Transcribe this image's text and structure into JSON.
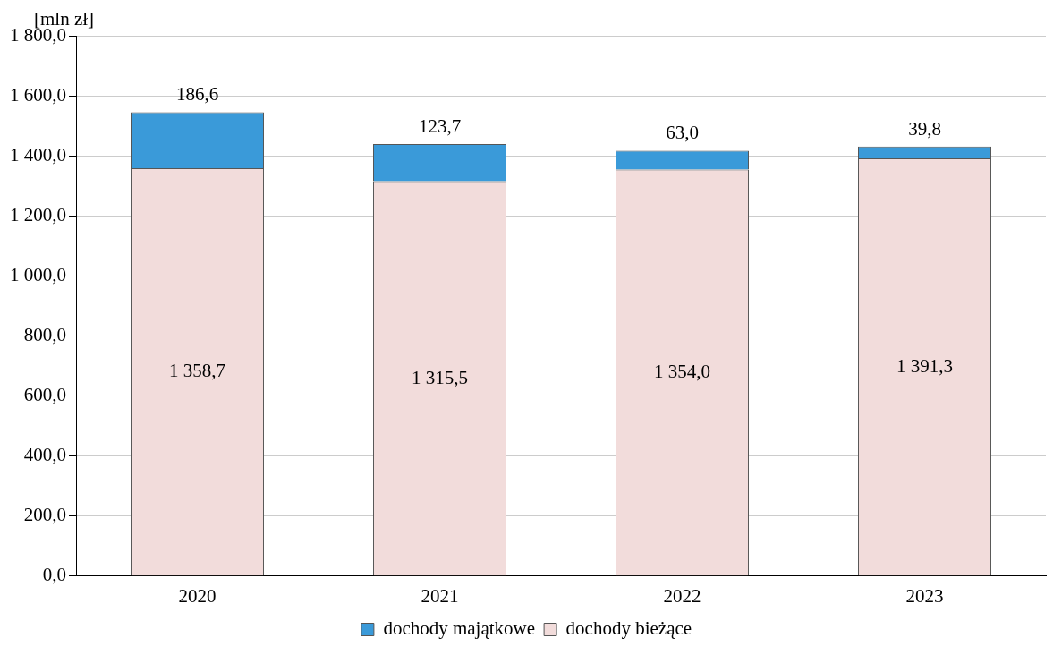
{
  "chart_data": {
    "type": "bar",
    "stacked": true,
    "ylabel": "[mln zł]",
    "categories": [
      "2020",
      "2021",
      "2022",
      "2023"
    ],
    "series": [
      {
        "name": "dochody bieżące",
        "color": "#f2dcdb",
        "values": [
          1358.7,
          1315.5,
          1354.0,
          1391.3
        ],
        "value_labels": [
          "1 358,7",
          "1 315,5",
          "1 354,0",
          "1 391,3"
        ]
      },
      {
        "name": "dochody majątkowe",
        "color": "#3a9ad9",
        "values": [
          186.6,
          123.7,
          63.0,
          39.8
        ],
        "value_labels": [
          "186,6",
          "123,7",
          "63,0",
          "39,8"
        ]
      }
    ],
    "ylim": [
      0,
      1800
    ],
    "yticks": [
      {
        "value": 0,
        "label": "0,0"
      },
      {
        "value": 200,
        "label": "200,0"
      },
      {
        "value": 400,
        "label": "400,0"
      },
      {
        "value": 600,
        "label": "600,0"
      },
      {
        "value": 800,
        "label": "800,0"
      },
      {
        "value": 1000,
        "label": "1 000,0"
      },
      {
        "value": 1200,
        "label": "1 200,0"
      },
      {
        "value": 1400,
        "label": "1 400,0"
      },
      {
        "value": 1600,
        "label": "1 600,0"
      },
      {
        "value": 1800,
        "label": "1 800,0"
      }
    ],
    "grid": "y",
    "legend": "bottom"
  }
}
